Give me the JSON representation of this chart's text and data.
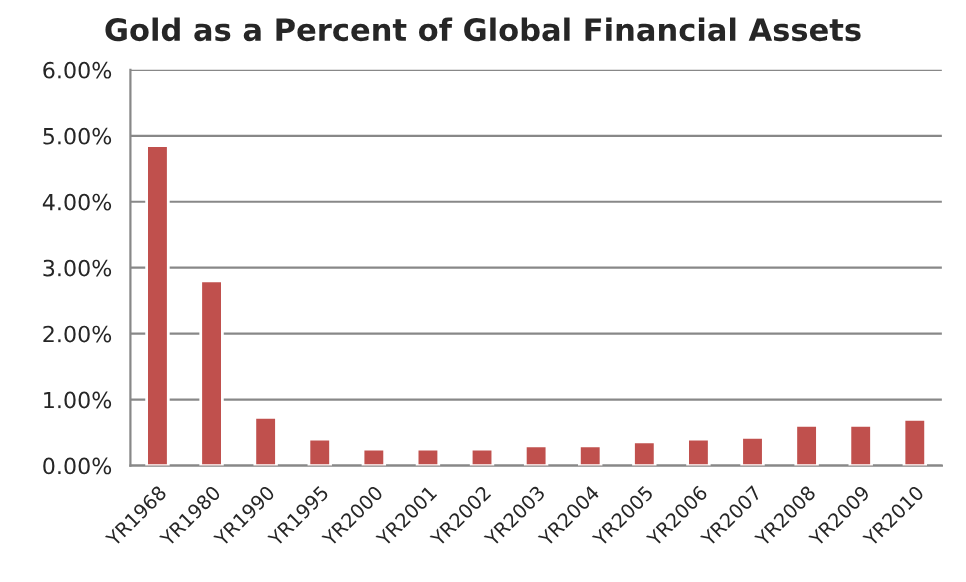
{
  "chart_data": {
    "type": "bar",
    "title": "Gold as a Percent of Global Financial Assets",
    "categories": [
      "YR1968",
      "YR1980",
      "YR1990",
      "YR1995",
      "YR2000",
      "YR2001",
      "YR2002",
      "YR2003",
      "YR2004",
      "YR2005",
      "YR2006",
      "YR2007",
      "YR2008",
      "YR2009",
      "YR2010"
    ],
    "values": [
      4.85,
      2.8,
      0.73,
      0.4,
      0.25,
      0.25,
      0.25,
      0.3,
      0.3,
      0.36,
      0.4,
      0.43,
      0.61,
      0.61,
      0.7
    ],
    "color": "#c0504d",
    "ylim": [
      0,
      6
    ],
    "yticks": [
      {
        "value": 0,
        "label": "0.00%"
      },
      {
        "value": 1,
        "label": "1.00%"
      },
      {
        "value": 2,
        "label": "2.00%"
      },
      {
        "value": 3,
        "label": "3.00%"
      },
      {
        "value": 4,
        "label": "4.00%"
      },
      {
        "value": 5,
        "label": "5.00%"
      },
      {
        "value": 6,
        "label": "6.00%"
      }
    ],
    "grid": "y",
    "legend": false
  }
}
